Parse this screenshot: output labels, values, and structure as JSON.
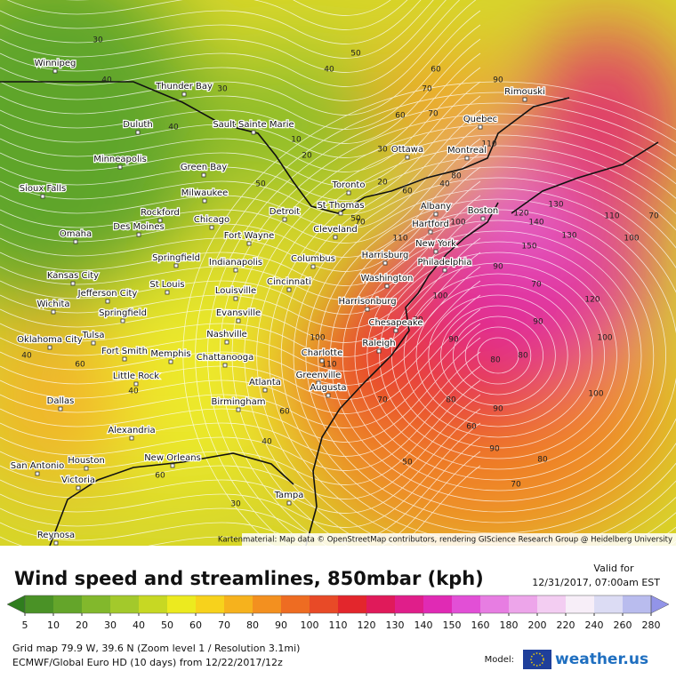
{
  "map": {
    "cities": [
      "Winnipeg",
      "Thunder Bay",
      "Duluth",
      "Sault Sainte Marie",
      "Minneapolis",
      "Green Bay",
      "Sioux Falls",
      "Milwaukee",
      "Toronto",
      "Ottawa",
      "Montreal",
      "Quebec",
      "Rimouski",
      "Rockford",
      "Chicago",
      "Detroit",
      "St Thomas",
      "Albany",
      "Boston",
      "Hartford",
      "Omaha",
      "Des Moines",
      "Fort Wayne",
      "Cleveland",
      "New York",
      "Harrisburg",
      "Philadelphia",
      "Springfield",
      "Indianapolis",
      "Columbus",
      "Kansas City",
      "Jefferson City",
      "St Louis",
      "Cincinnati",
      "Washington",
      "Wichita",
      "Springfield",
      "Louisville",
      "Harrisonburg",
      "Evansville",
      "Chesapeake",
      "Nashville",
      "Oklahoma City",
      "Tulsa",
      "Raleigh",
      "Charlotte",
      "Fort Smith",
      "Memphis",
      "Chattanooga",
      "Greenville",
      "Little Rock",
      "Atlanta",
      "Augusta",
      "Birmingham",
      "Dallas",
      "Alexandria",
      "Houston",
      "New Orleans",
      "San Antonio",
      "Victoria",
      "Tampa",
      "Reynosa"
    ],
    "contour_labels": [
      40,
      30,
      50,
      60,
      50,
      40,
      70,
      90,
      60,
      30,
      10,
      20,
      30,
      50,
      40,
      20,
      60,
      50,
      40,
      70,
      80,
      100,
      110,
      120,
      130,
      140,
      150,
      130,
      110,
      100,
      90,
      70,
      40,
      60,
      100,
      110,
      120,
      90,
      80,
      90,
      80,
      100,
      100,
      70,
      90,
      80,
      70,
      60,
      50,
      40,
      30,
      40,
      50,
      60,
      70,
      80,
      90,
      100,
      110,
      70,
      80,
      60
    ],
    "attribution": "Kartenmaterial: Map data © OpenStreetMap contributors, rendering GIScience Research Group @ Heidelberg University"
  },
  "header": {
    "title": "Wind speed and streamlines, 850mbar (kph)",
    "valid_label": "Valid for",
    "valid_time": "12/31/2017, 07:00am EST"
  },
  "legend": {
    "labels": [
      5,
      10,
      20,
      30,
      40,
      50,
      60,
      70,
      80,
      90,
      100,
      110,
      120,
      130,
      140,
      150,
      160,
      180,
      200,
      220,
      240,
      260,
      280
    ],
    "colors": [
      "#2f7d1e",
      "#4a9226",
      "#64a52a",
      "#82b82c",
      "#a3c92b",
      "#c7d823",
      "#ecea1f",
      "#f7d21c",
      "#f6b21d",
      "#f3901f",
      "#ee6c22",
      "#e84a27",
      "#e3262c",
      "#e01a5a",
      "#e01e8a",
      "#e02ab4",
      "#e24fd6",
      "#e77de2",
      "#eda5ea",
      "#f3cdf2",
      "#f7eef8",
      "#dcdcf4",
      "#b9bcee",
      "#9294e8"
    ]
  },
  "footer": {
    "line1": "Grid map 79.9 W, 39.6 N (Zoom level 1 / Resolution 3.1mi)",
    "line2": "ECMWF/Global Euro HD (10 days) from 12/22/2017/12z",
    "model_label": "Model:",
    "brand": "weather.us"
  }
}
